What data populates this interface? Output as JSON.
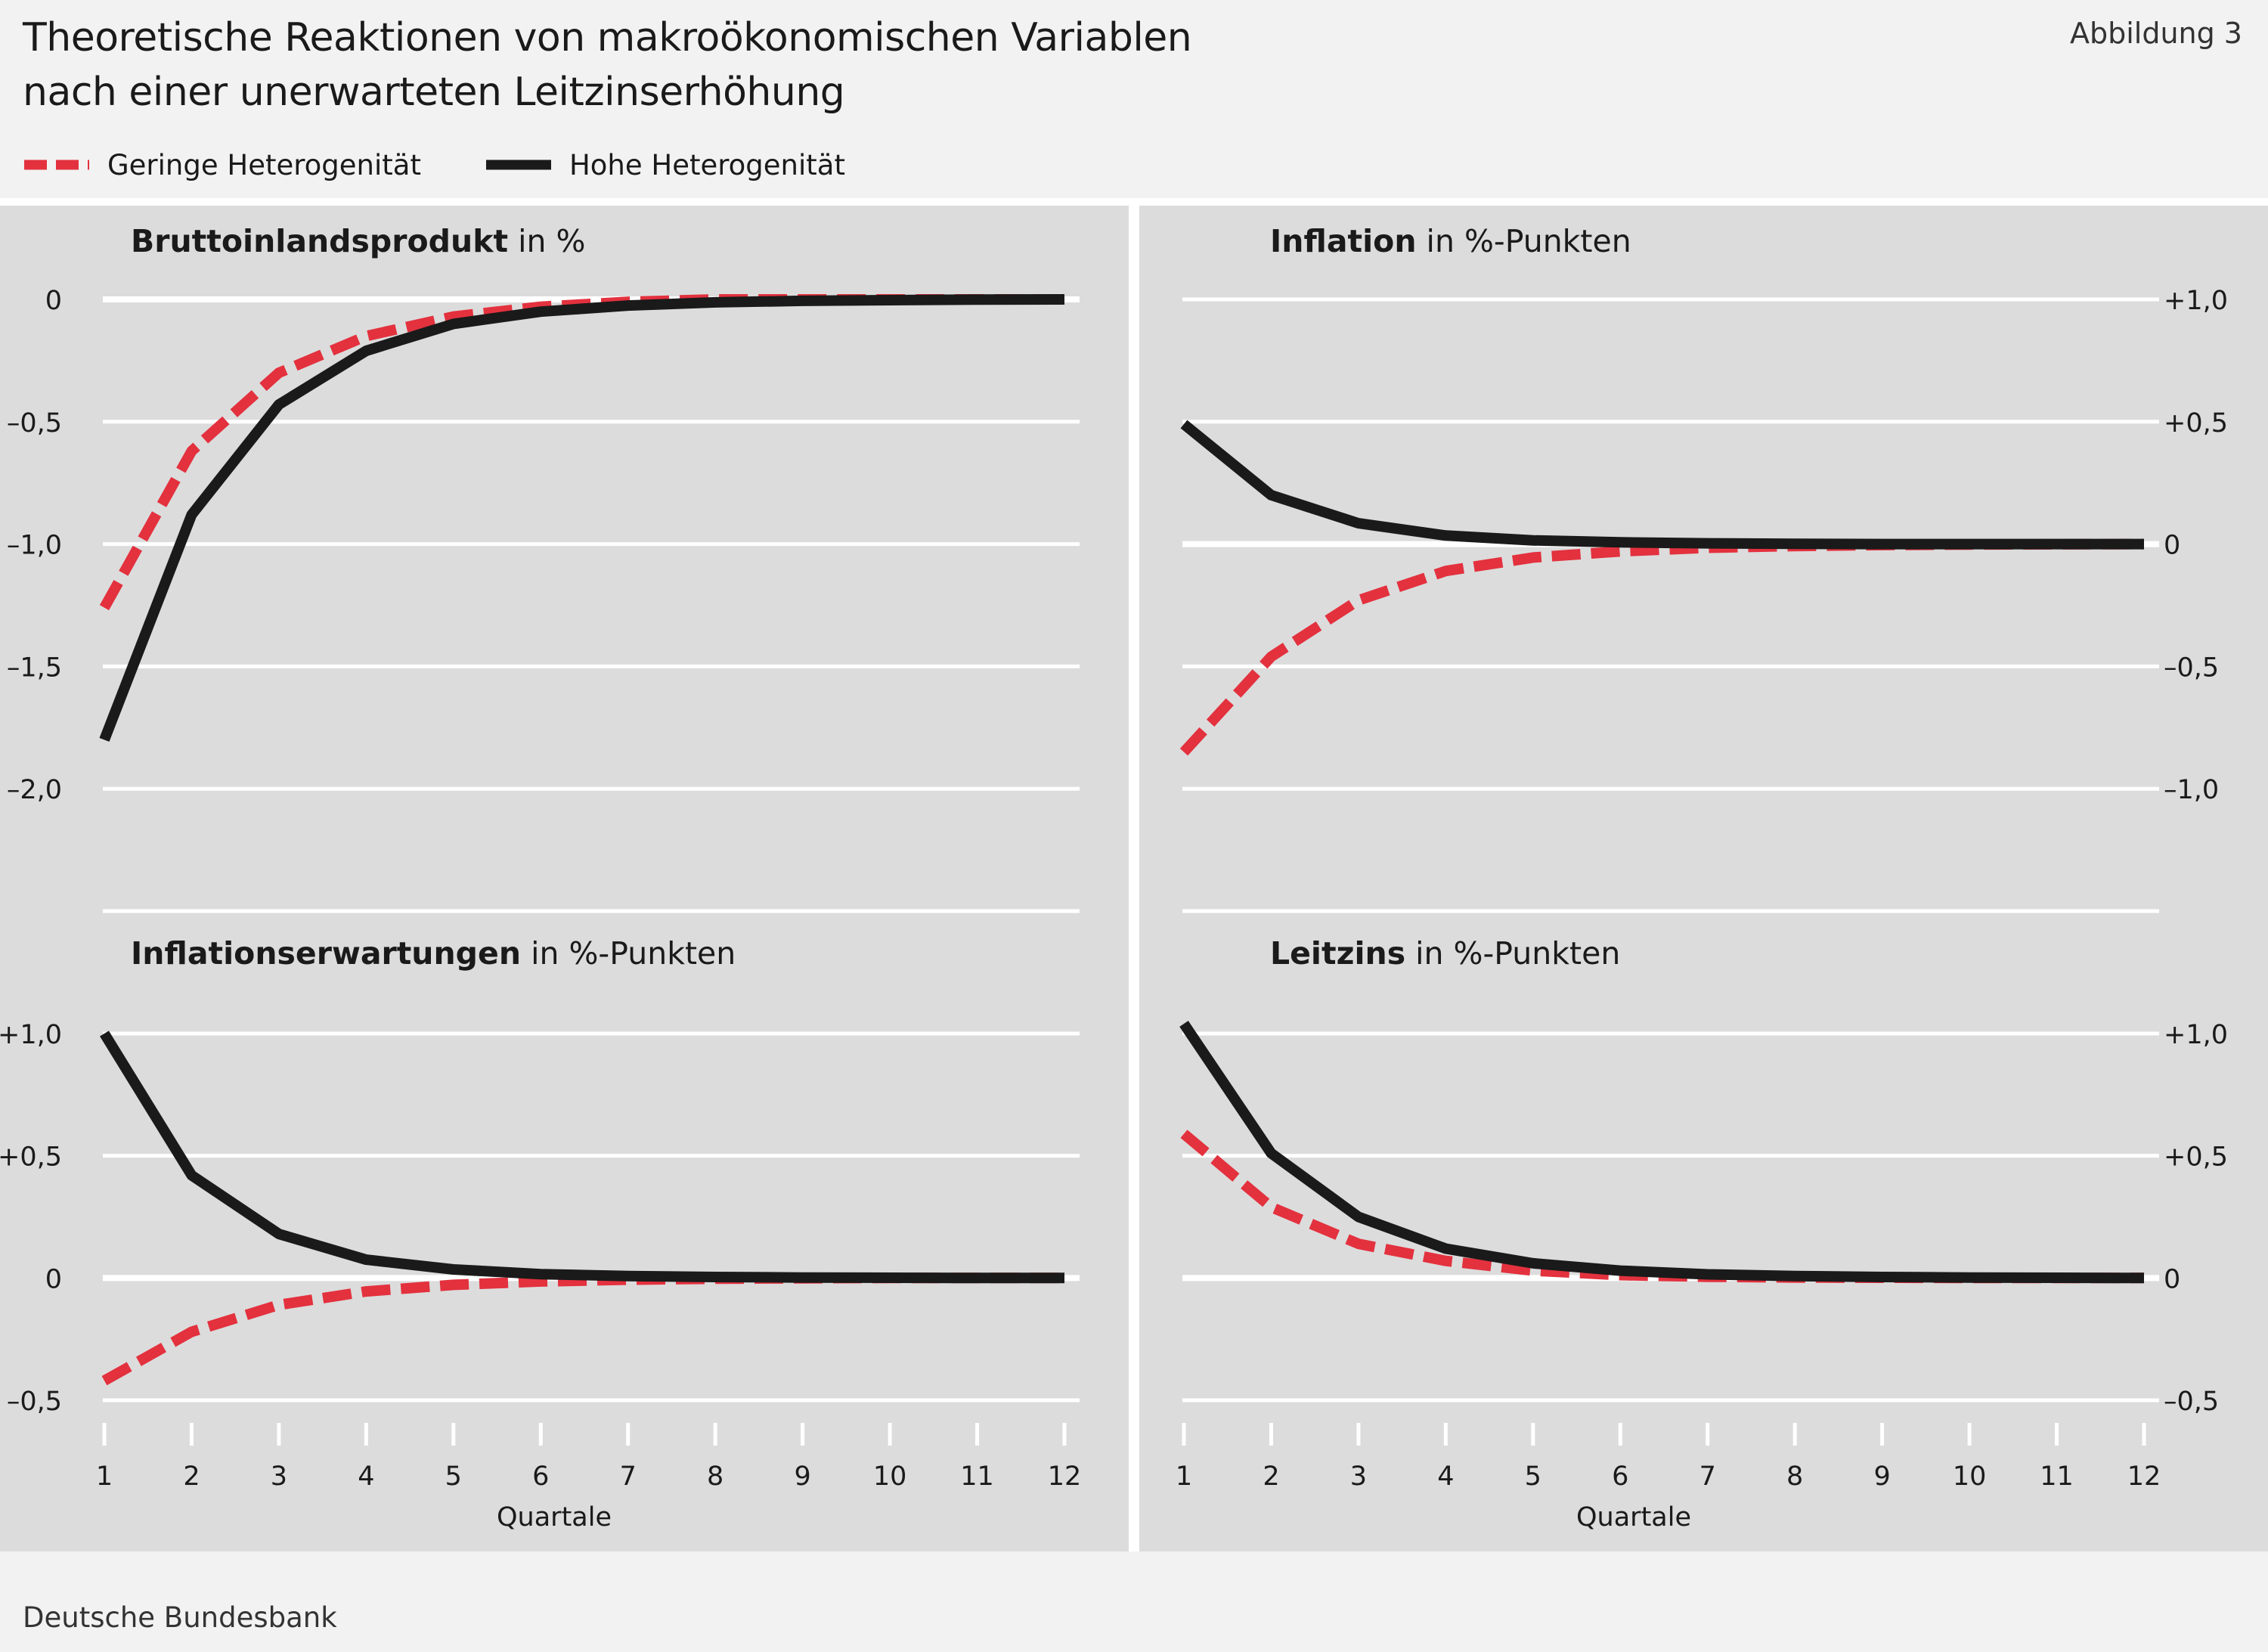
{
  "title_lines": [
    "Theoretische Reaktionen von makroökonomischen Variablen",
    "nach einer unerwarteten Leitzinserhöhung"
  ],
  "figure_label": "Abbildung 3",
  "source": "Deutsche Bundesbank",
  "legend": [
    {
      "label": "Geringe Heterogenität",
      "color": "#e3313e",
      "style": "dashed"
    },
    {
      "label": "Hohe Heterogenität",
      "color": "#1a1a1a",
      "style": "solid"
    }
  ],
  "colors": {
    "panel_bg": "#dcdcdc",
    "grid": "#ffffff",
    "low": "#e3313e",
    "high": "#1a1a1a",
    "background": "#f2f2f2"
  },
  "chart_data": [
    {
      "type": "line",
      "title": "Bruttoinlandsprodukt",
      "unit": "in %",
      "x": [
        1,
        2,
        3,
        4,
        5,
        6,
        7,
        8,
        9,
        10,
        11,
        12
      ],
      "ylim": [
        -2.5,
        0
      ],
      "yticks": [
        0,
        -0.5,
        -1.0,
        -1.5,
        -2.0
      ],
      "ytick_labels": [
        "0",
        "–0,5",
        "–1,0",
        "–1,5",
        "–2,0"
      ],
      "ytick_side": "left",
      "xlabel": "",
      "series": [
        {
          "name": "Geringe Heterogenität",
          "values": [
            -1.26,
            -0.62,
            -0.3,
            -0.15,
            -0.07,
            -0.03,
            -0.01,
            0,
            0,
            0,
            0,
            0
          ]
        },
        {
          "name": "Hohe Heterogenität",
          "values": [
            -1.8,
            -0.88,
            -0.43,
            -0.21,
            -0.1,
            -0.05,
            -0.025,
            -0.012,
            -0.006,
            -0.003,
            -0.001,
            0
          ]
        }
      ]
    },
    {
      "type": "line",
      "title": "Inflation",
      "unit": "in %-Punkten",
      "x": [
        1,
        2,
        3,
        4,
        5,
        6,
        7,
        8,
        9,
        10,
        11,
        12
      ],
      "ylim": [
        -1.5,
        1.0
      ],
      "yticks": [
        1.0,
        0.5,
        0,
        -0.5,
        -1.0
      ],
      "ytick_labels": [
        "+1,0",
        "+0,5",
        "0",
        "–0,5",
        "–1,0"
      ],
      "ytick_side": "right",
      "xlabel": "",
      "series": [
        {
          "name": "Geringe Heterogenität",
          "values": [
            -0.85,
            -0.46,
            -0.23,
            -0.11,
            -0.055,
            -0.03,
            -0.015,
            -0.008,
            -0.004,
            -0.002,
            -0.001,
            0
          ]
        },
        {
          "name": "Hohe Heterogenität",
          "values": [
            0.49,
            0.2,
            0.085,
            0.035,
            0.015,
            0.007,
            0.003,
            0.001,
            0,
            0,
            0,
            0
          ]
        }
      ]
    },
    {
      "type": "line",
      "title": "Inflationserwartungen",
      "unit": "in %-Punkten",
      "x": [
        1,
        2,
        3,
        4,
        5,
        6,
        7,
        8,
        9,
        10,
        11,
        12
      ],
      "ylim": [
        -0.5,
        1.0
      ],
      "yticks": [
        1.0,
        0.5,
        0,
        -0.5
      ],
      "ytick_labels": [
        "+1,0",
        "+0,5",
        "0",
        "–0,5"
      ],
      "ytick_side": "left",
      "xlabel": "Quartale",
      "series": [
        {
          "name": "Geringe Heterogenität",
          "values": [
            -0.42,
            -0.22,
            -0.11,
            -0.055,
            -0.028,
            -0.014,
            -0.007,
            -0.003,
            -0.001,
            0,
            0,
            0
          ]
        },
        {
          "name": "Hohe Heterogenität",
          "values": [
            1.0,
            0.42,
            0.18,
            0.075,
            0.035,
            0.016,
            0.008,
            0.004,
            0.002,
            0.001,
            0,
            0
          ]
        }
      ]
    },
    {
      "type": "line",
      "title": "Leitzins",
      "unit": "in %-Punkten",
      "x": [
        1,
        2,
        3,
        4,
        5,
        6,
        7,
        8,
        9,
        10,
        11,
        12
      ],
      "ylim": [
        -0.5,
        1.0
      ],
      "yticks": [
        1.0,
        0.5,
        0,
        -0.5
      ],
      "ytick_labels": [
        "+1,0",
        "+0,5",
        "0",
        "–0,5"
      ],
      "ytick_side": "right",
      "xlabel": "Quartale",
      "series": [
        {
          "name": "Geringe Heterogenität",
          "values": [
            0.59,
            0.29,
            0.14,
            0.07,
            0.03,
            0.012,
            0.005,
            0.002,
            0.001,
            0,
            0,
            0
          ]
        },
        {
          "name": "Hohe Heterogenität",
          "values": [
            1.04,
            0.51,
            0.25,
            0.12,
            0.06,
            0.03,
            0.015,
            0.008,
            0.004,
            0.002,
            0.001,
            0
          ]
        }
      ]
    }
  ]
}
